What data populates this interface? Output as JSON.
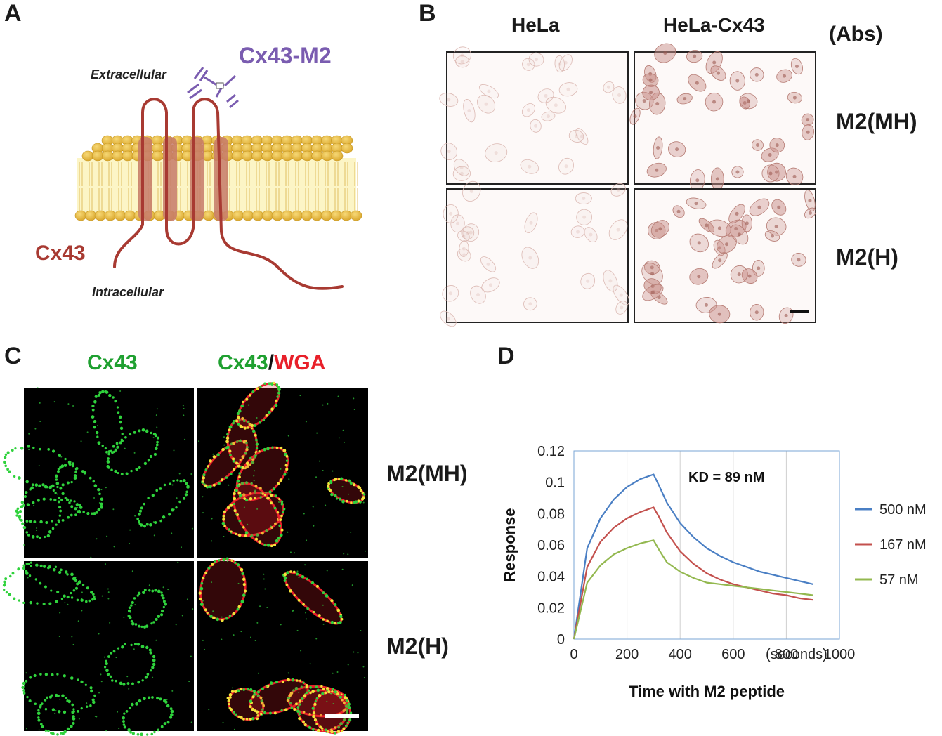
{
  "panel_a": {
    "label": "A",
    "antibody_label": "Cx43-M2",
    "extracellular": "Extracellular",
    "intracellular": "Intracellular",
    "protein_label": "Cx43",
    "colors": {
      "protein": "#a83a32",
      "antibody": "#7a5cb0",
      "lipid_head": "#eab93f",
      "membrane_fill": "#fcf5c6"
    }
  },
  "panel_b": {
    "label": "B",
    "col_labels": [
      "HeLa",
      "HeLa-Cx43"
    ],
    "abs_label": "(Abs)",
    "row_labels": [
      "M2(MH)",
      "M2(H)"
    ]
  },
  "panel_c": {
    "label": "C",
    "col1": "Cx43",
    "col2_green": "Cx43",
    "col2_sep": "/",
    "col2_red": "WGA",
    "row_labels": [
      "M2(MH)",
      "M2(H)"
    ],
    "colors": {
      "green": "#1fa030",
      "red": "#e8202a"
    }
  },
  "panel_d": {
    "label": "D",
    "chart_data": {
      "type": "line",
      "xlabel": "Time with M2 peptide",
      "x_unit": "(seconds)",
      "ylabel": "Response",
      "xlim": [
        0,
        1000
      ],
      "ylim": [
        0,
        0.12
      ],
      "x_ticks": [
        "0",
        "200",
        "400",
        "600",
        "800",
        "1000"
      ],
      "y_ticks": [
        "0",
        "0.02",
        "0.04",
        "0.06",
        "0.08",
        "0.1",
        "0.12"
      ],
      "grid": "vertical",
      "legend_position": "right",
      "annotation": "KD = 89 nM",
      "series": [
        {
          "name": "500 nM",
          "color": "#4a7fc4",
          "points": [
            [
              0,
              0
            ],
            [
              50,
              0.058
            ],
            [
              100,
              0.077
            ],
            [
              150,
              0.089
            ],
            [
              200,
              0.097
            ],
            [
              250,
              0.102
            ],
            [
              300,
              0.105
            ],
            [
              320,
              0.098
            ],
            [
              350,
              0.087
            ],
            [
              400,
              0.074
            ],
            [
              450,
              0.065
            ],
            [
              500,
              0.058
            ],
            [
              550,
              0.053
            ],
            [
              600,
              0.049
            ],
            [
              650,
              0.046
            ],
            [
              700,
              0.043
            ],
            [
              750,
              0.041
            ],
            [
              800,
              0.039
            ],
            [
              850,
              0.037
            ],
            [
              900,
              0.035
            ]
          ]
        },
        {
          "name": "167 nM",
          "color": "#c3504d",
          "points": [
            [
              0,
              0
            ],
            [
              50,
              0.046
            ],
            [
              100,
              0.062
            ],
            [
              150,
              0.071
            ],
            [
              200,
              0.077
            ],
            [
              250,
              0.081
            ],
            [
              300,
              0.084
            ],
            [
              320,
              0.078
            ],
            [
              350,
              0.068
            ],
            [
              400,
              0.056
            ],
            [
              450,
              0.048
            ],
            [
              500,
              0.042
            ],
            [
              550,
              0.038
            ],
            [
              600,
              0.035
            ],
            [
              650,
              0.033
            ],
            [
              700,
              0.031
            ],
            [
              750,
              0.029
            ],
            [
              800,
              0.028
            ],
            [
              850,
              0.026
            ],
            [
              900,
              0.025
            ]
          ]
        },
        {
          "name": "57 nM",
          "color": "#93b84f",
          "points": [
            [
              0,
              0
            ],
            [
              50,
              0.036
            ],
            [
              100,
              0.047
            ],
            [
              150,
              0.054
            ],
            [
              200,
              0.058
            ],
            [
              250,
              0.061
            ],
            [
              300,
              0.063
            ],
            [
              320,
              0.057
            ],
            [
              350,
              0.049
            ],
            [
              400,
              0.043
            ],
            [
              450,
              0.039
            ],
            [
              500,
              0.036
            ],
            [
              550,
              0.035
            ],
            [
              600,
              0.034
            ],
            [
              650,
              0.033
            ],
            [
              700,
              0.032
            ],
            [
              750,
              0.031
            ],
            [
              800,
              0.03
            ],
            [
              850,
              0.029
            ],
            [
              900,
              0.028
            ]
          ]
        }
      ]
    }
  }
}
